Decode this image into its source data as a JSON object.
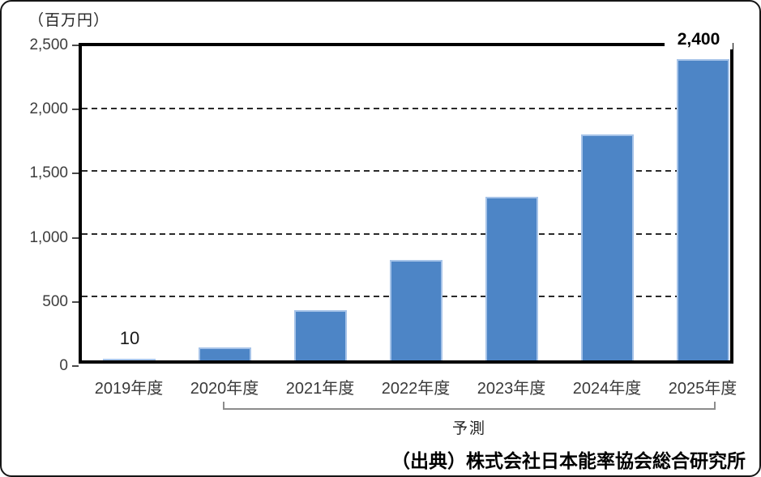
{
  "chart_data": {
    "type": "bar",
    "title": "",
    "unit_label": "（百万円）",
    "categories": [
      "2019年度",
      "2020年度",
      "2021年度",
      "2022年度",
      "2023年度",
      "2024年度",
      "2025年度"
    ],
    "values": [
      10,
      100,
      400,
      800,
      1300,
      1800,
      2400
    ],
    "ylim": [
      0,
      2500
    ],
    "y_tick_values": [
      0,
      500,
      1000,
      1500,
      2000,
      2500
    ],
    "y_tick_labels": [
      "0",
      "500",
      "1,000",
      "1,500",
      "2,000",
      "2,500"
    ],
    "grid": "horizontal-dashed",
    "legend": "none",
    "bar_color": "#4d85c6",
    "bar_border_color": "#a6c3e8",
    "annotations": {
      "first_bar_label": "10",
      "last_bar_label": "2,400",
      "forecast_label": "予測",
      "forecast_span": [
        "2020年度",
        "2025年度"
      ]
    },
    "source": "（出典）株式会社日本能率協会総合研究所"
  }
}
